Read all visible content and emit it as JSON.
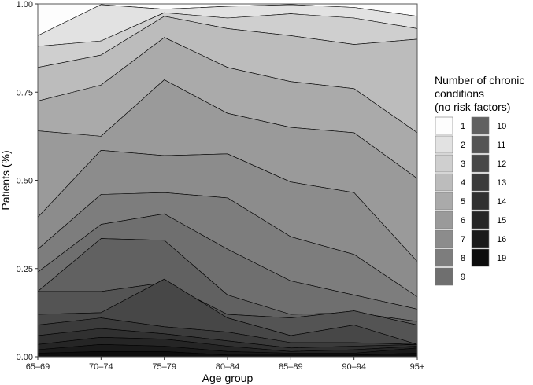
{
  "chart_data": {
    "type": "area",
    "stacked": true,
    "categories": [
      "65–69",
      "70–74",
      "75–79",
      "80–84",
      "85–89",
      "90–94",
      "95+"
    ],
    "xlabel": "Age group",
    "ylabel": "Patients (%)",
    "ylim": [
      0,
      1
    ],
    "yticks": [
      "0.00",
      "0.25",
      "0.50",
      "0.75",
      "1.00"
    ],
    "grid": false,
    "legend": {
      "title_lines": [
        "Number of chronic",
        "conditions",
        "(no risk factors)"
      ],
      "placement": "right"
    },
    "series": [
      {
        "name": "1",
        "color": "#fdfdfd",
        "cum": [
          1.0,
          1.0,
          1.0,
          1.0,
          1.0,
          1.0,
          1.0
        ]
      },
      {
        "name": "2",
        "color": "#e2e2e2",
        "cum": [
          0.91,
          0.998,
          0.985,
          0.993,
          0.998,
          0.99,
          0.965
        ]
      },
      {
        "name": "3",
        "color": "#cfcfcf",
        "cum": [
          0.88,
          0.895,
          0.975,
          0.96,
          0.972,
          0.96,
          0.93
        ]
      },
      {
        "name": "4",
        "color": "#bcbcbc",
        "cum": [
          0.82,
          0.855,
          0.965,
          0.93,
          0.91,
          0.885,
          0.9
        ]
      },
      {
        "name": "5",
        "color": "#aaaaaa",
        "cum": [
          0.725,
          0.77,
          0.905,
          0.82,
          0.78,
          0.76,
          0.635
        ]
      },
      {
        "name": "6",
        "color": "#9a9a9a",
        "cum": [
          0.64,
          0.625,
          0.785,
          0.69,
          0.65,
          0.635,
          0.505
        ]
      },
      {
        "name": "7",
        "color": "#8c8c8c",
        "cum": [
          0.395,
          0.585,
          0.57,
          0.575,
          0.495,
          0.465,
          0.27
        ]
      },
      {
        "name": "8",
        "color": "#7d7d7d",
        "cum": [
          0.305,
          0.46,
          0.465,
          0.45,
          0.34,
          0.29,
          0.17
        ]
      },
      {
        "name": "9",
        "color": "#6f6f6f",
        "cum": [
          0.24,
          0.375,
          0.405,
          0.305,
          0.215,
          0.175,
          0.135
        ]
      },
      {
        "name": "10",
        "color": "#616161",
        "cum": [
          0.185,
          0.335,
          0.33,
          0.175,
          0.12,
          0.125,
          0.1
        ]
      },
      {
        "name": "11",
        "color": "#545454",
        "cum": [
          0.185,
          0.185,
          0.21,
          0.12,
          0.11,
          0.13,
          0.09
        ]
      },
      {
        "name": "12",
        "color": "#474747",
        "cum": [
          0.12,
          0.125,
          0.22,
          0.11,
          0.06,
          0.09,
          0.035
        ]
      },
      {
        "name": "13",
        "color": "#3b3b3b",
        "cum": [
          0.09,
          0.11,
          0.085,
          0.07,
          0.04,
          0.04,
          0.035
        ]
      },
      {
        "name": "14",
        "color": "#303030",
        "cum": [
          0.06,
          0.08,
          0.065,
          0.045,
          0.025,
          0.03,
          0.035
        ]
      },
      {
        "name": "15",
        "color": "#252525",
        "cum": [
          0.035,
          0.055,
          0.05,
          0.03,
          0.015,
          0.02,
          0.03
        ]
      },
      {
        "name": "16",
        "color": "#1a1a1a",
        "cum": [
          0.02,
          0.035,
          0.03,
          0.015,
          0.01,
          0.01,
          0.025
        ]
      },
      {
        "name": "19",
        "color": "#0d0d0d",
        "cum": [
          0.01,
          0.015,
          0.015,
          0.005,
          0.005,
          0.005,
          0.01
        ]
      }
    ]
  }
}
